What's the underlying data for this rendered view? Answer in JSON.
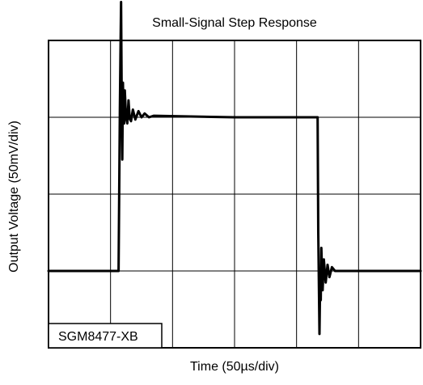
{
  "chart_data": {
    "type": "line",
    "title": "Small-Signal Step Response",
    "xlabel": "Time (50µs/div)",
    "ylabel": "Output Voltage (50mV/div)",
    "annotation": "SGM8477-XB",
    "x_divisions": 6,
    "y_divisions": 4,
    "xlim": [
      0,
      6
    ],
    "ylim": [
      0,
      4
    ],
    "grid": true,
    "colors": {
      "trace": "#000000",
      "grid": "#000000",
      "background": "#ffffff"
    },
    "series": [
      {
        "x": [
          0,
          1.1,
          1.13,
          1.15,
          1.16,
          1.17,
          1.18,
          1.19,
          1.2,
          1.21,
          1.22,
          1.23,
          1.25,
          1.27,
          1.29,
          1.31,
          1.33,
          1.36,
          1.4,
          1.45,
          1.5,
          1.55,
          1.62,
          1.7,
          3.0,
          4.2,
          4.31,
          4.34,
          4.35,
          4.36,
          4.37,
          4.38,
          4.39,
          4.4,
          4.42,
          4.44,
          4.47,
          4.5,
          4.53,
          4.57,
          4.62,
          4.7,
          6.0
        ],
        "y": [
          1.0,
          1.0,
          1.0,
          3.1,
          3.8,
          4.5,
          3.2,
          2.45,
          3.45,
          3.0,
          2.92,
          3.35,
          3.0,
          2.92,
          3.22,
          2.98,
          2.95,
          3.1,
          2.97,
          3.08,
          3.0,
          3.05,
          3.0,
          3.02,
          3.0,
          3.0,
          3.0,
          3.0,
          1.5,
          0.8,
          0.18,
          0.85,
          0.62,
          1.3,
          0.75,
          1.15,
          0.85,
          1.08,
          0.92,
          1.05,
          1.0,
          1.0,
          1.0
        ]
      }
    ]
  }
}
